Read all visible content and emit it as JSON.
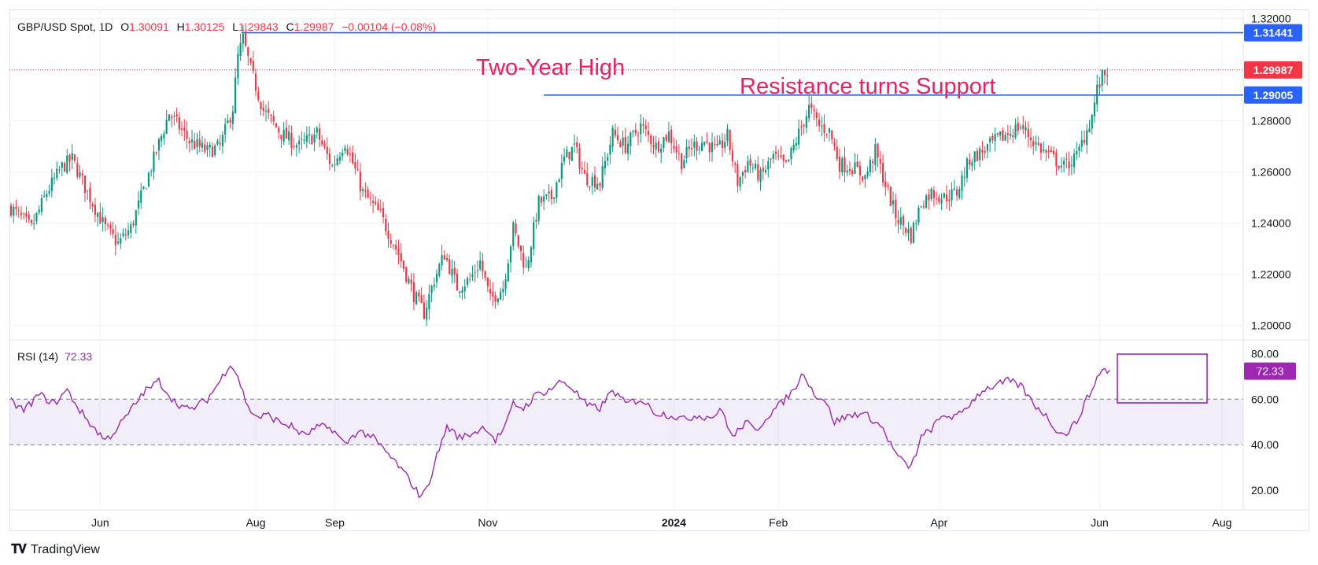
{
  "header": {
    "symbol": "GBP/USD Spot, 1D",
    "o_label": "O",
    "o_value": "1.30091",
    "h_label": "H",
    "h_value": "1.30125",
    "l_label": "L",
    "l_value": "1.29843",
    "c_label": "C",
    "c_value": "1.29987",
    "change": "−0.00104 (−0.08%)"
  },
  "rsi_legend": {
    "label": "RSI (14)",
    "value": "72.33"
  },
  "footer": {
    "brand": "TradingView"
  },
  "colors": {
    "up": "#089981",
    "down": "#f23645",
    "level": "#2962ff",
    "rsi": "#9c27b0",
    "annotation": "#e91e63"
  },
  "chart_data": {
    "type": "candlestick",
    "price_axis": {
      "ticks": [
        "1.32000",
        "1.30000",
        "1.28000",
        "1.26000",
        "1.24000",
        "1.22000",
        "1.20000"
      ],
      "range": [
        1.195,
        1.3235
      ]
    },
    "time_axis": {
      "ticks": [
        "Jun",
        "Aug",
        "Sep",
        "Nov",
        "2024",
        "Feb",
        "Apr",
        "Jun",
        "Aug"
      ]
    },
    "annotations": {
      "two_year_high": {
        "text": "Two-Year High",
        "level": 1.31441,
        "label": "1.31441"
      },
      "support": {
        "text": "Resistance turns Support",
        "level": 1.29005,
        "label": "1.29005"
      },
      "last_price": {
        "level": 1.29987,
        "label": "1.29987"
      }
    },
    "anchors": [
      [
        0,
        1.246
      ],
      [
        8,
        1.238
      ],
      [
        14,
        1.252
      ],
      [
        20,
        1.262
      ],
      [
        24,
        1.265
      ],
      [
        30,
        1.252
      ],
      [
        37,
        1.238
      ],
      [
        42,
        1.232
      ],
      [
        47,
        1.238
      ],
      [
        55,
        1.262
      ],
      [
        62,
        1.283
      ],
      [
        70,
        1.272
      ],
      [
        77,
        1.268
      ],
      [
        82,
        1.27
      ],
      [
        87,
        1.285
      ],
      [
        89,
        1.305
      ],
      [
        91,
        1.312
      ],
      [
        94,
        1.3
      ],
      [
        99,
        1.284
      ],
      [
        106,
        1.275
      ],
      [
        113,
        1.27
      ],
      [
        120,
        1.275
      ],
      [
        126,
        1.262
      ],
      [
        131,
        1.272
      ],
      [
        138,
        1.252
      ],
      [
        145,
        1.243
      ],
      [
        152,
        1.228
      ],
      [
        158,
        1.212
      ],
      [
        162,
        1.205
      ],
      [
        166,
        1.218
      ],
      [
        170,
        1.228
      ],
      [
        175,
        1.215
      ],
      [
        180,
        1.218
      ],
      [
        184,
        1.225
      ],
      [
        188,
        1.21
      ],
      [
        193,
        1.215
      ],
      [
        197,
        1.238
      ],
      [
        202,
        1.222
      ],
      [
        207,
        1.248
      ],
      [
        212,
        1.25
      ],
      [
        217,
        1.265
      ],
      [
        221,
        1.27
      ],
      [
        225,
        1.258
      ],
      [
        231,
        1.256
      ],
      [
        236,
        1.275
      ],
      [
        241,
        1.27
      ],
      [
        247,
        1.278
      ],
      [
        253,
        1.27
      ],
      [
        258,
        1.275
      ],
      [
        263,
        1.264
      ],
      [
        267,
        1.27
      ],
      [
        272,
        1.272
      ],
      [
        277,
        1.268
      ],
      [
        281,
        1.274
      ],
      [
        285,
        1.256
      ],
      [
        289,
        1.264
      ],
      [
        294,
        1.258
      ],
      [
        299,
        1.266
      ],
      [
        304,
        1.262
      ],
      [
        309,
        1.275
      ],
      [
        313,
        1.285
      ],
      [
        317,
        1.278
      ],
      [
        321,
        1.276
      ],
      [
        325,
        1.263
      ],
      [
        330,
        1.262
      ],
      [
        335,
        1.258
      ],
      [
        339,
        1.268
      ],
      [
        343,
        1.255
      ],
      [
        347,
        1.243
      ],
      [
        351,
        1.238
      ],
      [
        353,
        1.235
      ],
      [
        357,
        1.248
      ],
      [
        361,
        1.252
      ],
      [
        366,
        1.25
      ],
      [
        371,
        1.252
      ],
      [
        376,
        1.265
      ],
      [
        381,
        1.268
      ],
      [
        386,
        1.272
      ],
      [
        391,
        1.275
      ],
      [
        396,
        1.278
      ],
      [
        401,
        1.272
      ],
      [
        405,
        1.268
      ],
      [
        409,
        1.265
      ],
      [
        413,
        1.262
      ],
      [
        418,
        1.266
      ],
      [
        421,
        1.274
      ],
      [
        424,
        1.282
      ],
      [
        426,
        1.292
      ],
      [
        428,
        1.297
      ],
      [
        430,
        1.3
      ]
    ],
    "rsi": {
      "axis_ticks": [
        "80.00",
        "60.00",
        "40.00",
        "20.00"
      ],
      "band": [
        40,
        60
      ],
      "range": [
        12,
        85
      ],
      "anchors": [
        [
          0,
          59
        ],
        [
          5,
          55
        ],
        [
          11,
          62
        ],
        [
          17,
          58
        ],
        [
          22,
          64
        ],
        [
          27,
          55
        ],
        [
          32,
          48
        ],
        [
          37,
          42
        ],
        [
          40,
          45
        ],
        [
          45,
          52
        ],
        [
          52,
          63
        ],
        [
          58,
          68
        ],
        [
          64,
          59
        ],
        [
          70,
          55
        ],
        [
          77,
          60
        ],
        [
          82,
          68
        ],
        [
          86,
          76
        ],
        [
          89,
          70
        ],
        [
          93,
          56
        ],
        [
          97,
          52
        ],
        [
          101,
          53
        ],
        [
          105,
          50
        ],
        [
          110,
          48
        ],
        [
          115,
          44
        ],
        [
          121,
          48
        ],
        [
          126,
          47
        ],
        [
          131,
          40
        ],
        [
          136,
          46
        ],
        [
          141,
          44
        ],
        [
          146,
          38
        ],
        [
          151,
          32
        ],
        [
          156,
          25
        ],
        [
          160,
          18
        ],
        [
          163,
          20
        ],
        [
          167,
          35
        ],
        [
          171,
          48
        ],
        [
          176,
          43
        ],
        [
          181,
          45
        ],
        [
          186,
          48
        ],
        [
          190,
          42
        ],
        [
          194,
          48
        ],
        [
          197,
          58
        ],
        [
          201,
          56
        ],
        [
          206,
          62
        ],
        [
          211,
          64
        ],
        [
          216,
          68
        ],
        [
          220,
          65
        ],
        [
          226,
          57
        ],
        [
          231,
          56
        ],
        [
          236,
          64
        ],
        [
          241,
          58
        ],
        [
          247,
          60
        ],
        [
          253,
          54
        ],
        [
          259,
          53
        ],
        [
          264,
          51
        ],
        [
          269,
          53
        ],
        [
          274,
          52
        ],
        [
          279,
          55
        ],
        [
          283,
          43
        ],
        [
          288,
          50
        ],
        [
          292,
          46
        ],
        [
          297,
          53
        ],
        [
          302,
          58
        ],
        [
          307,
          64
        ],
        [
          311,
          72
        ],
        [
          315,
          62
        ],
        [
          319,
          60
        ],
        [
          323,
          50
        ],
        [
          327,
          52
        ],
        [
          333,
          54
        ],
        [
          337,
          52
        ],
        [
          342,
          47
        ],
        [
          346,
          38
        ],
        [
          350,
          32
        ],
        [
          353,
          30
        ],
        [
          357,
          43
        ],
        [
          361,
          47
        ],
        [
          366,
          53
        ],
        [
          371,
          52
        ],
        [
          376,
          58
        ],
        [
          381,
          64
        ],
        [
          386,
          66
        ],
        [
          391,
          68
        ],
        [
          396,
          66
        ],
        [
          401,
          58
        ],
        [
          405,
          54
        ],
        [
          409,
          48
        ],
        [
          413,
          44
        ],
        [
          418,
          50
        ],
        [
          421,
          58
        ],
        [
          424,
          64
        ],
        [
          427,
          72
        ],
        [
          429,
          73
        ],
        [
          431,
          72.33
        ]
      ]
    }
  }
}
